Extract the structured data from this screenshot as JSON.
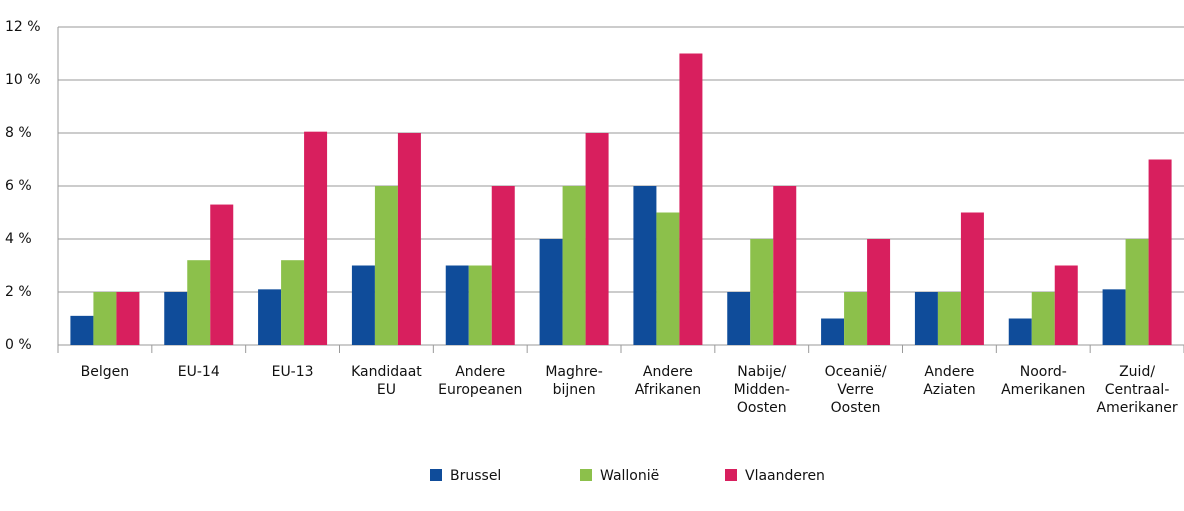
{
  "chart_data": {
    "type": "bar",
    "categories": [
      "Belgen",
      "EU-14",
      "EU-13",
      "Kandidaat\nEU",
      "Andere\nEuropeanen",
      "Maghre-\nbijnen",
      "Andere\nAfrikanen",
      "Nabije/\nMidden-\nOosten",
      "Oceanië/\nVerre\nOosten",
      "Andere\nAziaten",
      "Noord-\nAmerikanen",
      "Zuid/\nCentraal-\nAmerikaner"
    ],
    "series": [
      {
        "name": "Brussel",
        "color": "#0f4c9a",
        "values": [
          1.1,
          2,
          2.1,
          3,
          3,
          4,
          6,
          2,
          1,
          2,
          1,
          2.1
        ]
      },
      {
        "name": "Wallonië",
        "color": "#8cc04b",
        "values": [
          2,
          3.2,
          3.2,
          6,
          3,
          6,
          5,
          4,
          2,
          2,
          2,
          4
        ]
      },
      {
        "name": "Vlaanderen",
        "color": "#d81f5e",
        "values": [
          2,
          5.3,
          8.05,
          8,
          6,
          8,
          11,
          6,
          4,
          5,
          3,
          7
        ]
      }
    ],
    "ylim": [
      0,
      12
    ],
    "yticks": [
      {
        "value": 0,
        "label": "0 %"
      },
      {
        "value": 2,
        "label": "2 %"
      },
      {
        "value": 4,
        "label": "4 %"
      },
      {
        "value": 6,
        "label": "6 %"
      },
      {
        "value": 8,
        "label": "8 %"
      },
      {
        "value": 10,
        "label": "10 %"
      },
      {
        "value": 12,
        "label": "12 %"
      }
    ],
    "grid": true,
    "legend": "bottom"
  }
}
